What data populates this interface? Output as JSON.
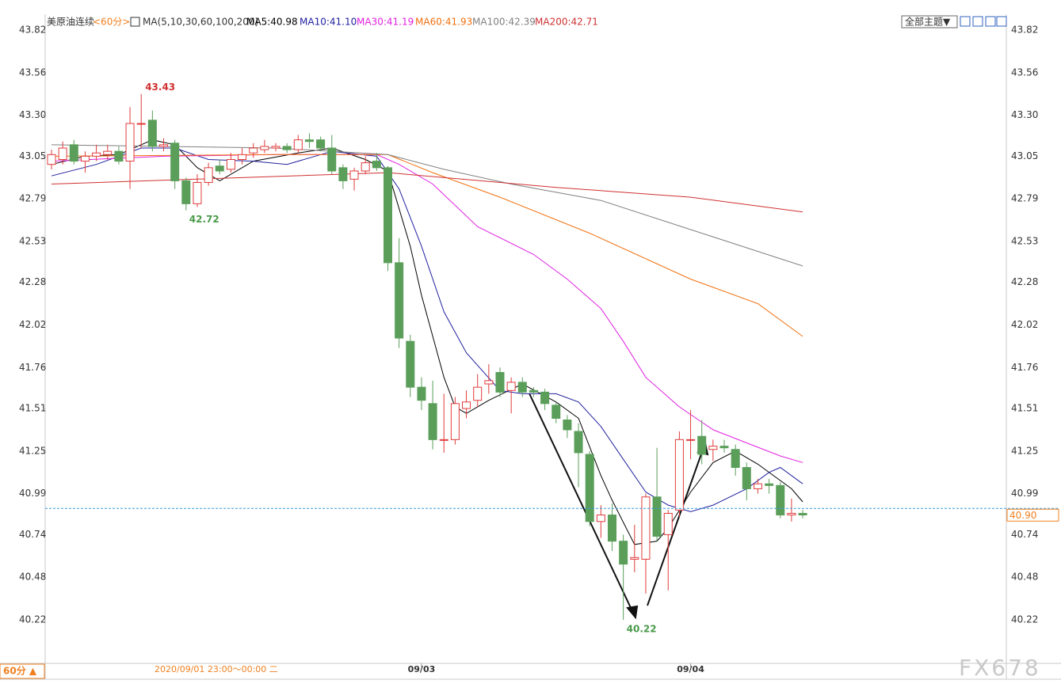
{
  "chart_data": {
    "type": "candlestick",
    "instrument": "美原油连续",
    "period": "<60分>",
    "indicator": "MA(5,10,30,60,100,200)",
    "toolbar": "全部主题▼",
    "cursor_label": "2020/09/01 23:00～00:00 二",
    "period_switch": "60分 ▲",
    "watermark": "FX678",
    "up_color": "#e03c3c",
    "down_color": "#5a9e5a",
    "ylim": [
      39.97,
      43.91
    ],
    "yticks": [
      43.82,
      43.56,
      {
        "value": 43.3,
        "label": "43.30"
      },
      43.05,
      42.79,
      42.53,
      42.28,
      42.02,
      41.76,
      41.51,
      41.25,
      40.99,
      40.74,
      40.48,
      40.22
    ],
    "x_labels": [
      {
        "value": 33,
        "label": "09/03"
      },
      {
        "value": 57,
        "label": "09/04"
      }
    ],
    "current_price": {
      "value": 40.9,
      "label": "40.90"
    },
    "ohlc": [
      [
        43.0,
        43.09,
        42.97,
        43.06
      ],
      [
        43.03,
        43.14,
        43.0,
        43.1
      ],
      [
        43.12,
        43.15,
        43.0,
        43.02
      ],
      [
        43.02,
        43.08,
        42.95,
        43.05
      ],
      [
        43.05,
        43.12,
        43.02,
        43.07
      ],
      [
        43.06,
        43.12,
        43.03,
        43.08
      ],
      [
        43.08,
        43.11,
        43.0,
        43.02
      ],
      [
        43.02,
        43.35,
        42.85,
        43.25
      ],
      [
        43.25,
        43.43,
        43.1,
        43.25
      ],
      [
        43.27,
        43.33,
        43.08,
        43.11
      ],
      [
        43.11,
        43.16,
        43.08,
        43.12
      ],
      [
        43.13,
        43.15,
        42.85,
        42.9
      ],
      [
        42.9,
        42.92,
        42.72,
        42.76
      ],
      [
        42.76,
        42.94,
        42.74,
        42.89
      ],
      [
        42.89,
        43.01,
        42.87,
        42.98
      ],
      [
        42.99,
        43.03,
        42.94,
        42.96
      ],
      [
        42.97,
        43.07,
        42.95,
        43.03
      ],
      [
        43.03,
        43.1,
        43.0,
        43.06
      ],
      [
        43.07,
        43.13,
        43.04,
        43.1
      ],
      [
        43.09,
        43.15,
        43.07,
        43.11
      ],
      [
        43.1,
        43.13,
        43.08,
        43.11
      ],
      [
        43.11,
        43.13,
        43.07,
        43.09
      ],
      [
        43.09,
        43.18,
        43.07,
        43.15
      ],
      [
        43.15,
        43.19,
        43.1,
        43.14
      ],
      [
        43.15,
        43.17,
        43.08,
        43.1
      ],
      [
        43.1,
        43.18,
        42.94,
        42.96
      ],
      [
        42.98,
        43.0,
        42.85,
        42.9
      ],
      [
        42.91,
        42.98,
        42.84,
        42.96
      ],
      [
        42.96,
        43.05,
        42.94,
        43.01
      ],
      [
        43.02,
        43.07,
        42.96,
        42.98
      ],
      [
        42.98,
        42.99,
        42.35,
        42.4
      ],
      [
        42.4,
        42.55,
        41.88,
        41.94
      ],
      [
        41.92,
        41.96,
        41.58,
        41.64
      ],
      [
        41.64,
        41.7,
        41.5,
        41.56
      ],
      [
        41.54,
        41.68,
        41.26,
        41.32
      ],
      [
        41.32,
        41.6,
        41.24,
        41.32
      ],
      [
        41.32,
        41.58,
        41.29,
        41.54
      ],
      [
        41.51,
        41.62,
        41.45,
        41.55
      ],
      [
        41.56,
        41.72,
        41.52,
        41.64
      ],
      [
        41.66,
        41.78,
        41.6,
        41.68
      ],
      [
        41.73,
        41.76,
        41.58,
        41.61
      ],
      [
        41.62,
        41.7,
        41.48,
        41.67
      ],
      [
        41.67,
        41.7,
        41.58,
        41.61
      ],
      [
        41.62,
        41.64,
        41.58,
        41.61
      ],
      [
        41.61,
        41.63,
        41.5,
        41.54
      ],
      [
        41.53,
        41.55,
        41.42,
        41.45
      ],
      [
        41.44,
        41.47,
        41.33,
        41.38
      ],
      [
        41.37,
        41.42,
        41.03,
        41.24
      ],
      [
        41.23,
        41.25,
        40.79,
        40.82
      ],
      [
        40.82,
        40.92,
        40.72,
        40.86
      ],
      [
        40.86,
        40.93,
        40.64,
        40.7
      ],
      [
        40.7,
        40.74,
        40.22,
        40.56
      ],
      [
        40.59,
        40.8,
        40.51,
        40.6
      ],
      [
        40.59,
        40.99,
        40.38,
        40.97
      ],
      [
        40.97,
        41.27,
        40.7,
        40.73
      ],
      [
        40.74,
        40.89,
        40.4,
        40.87
      ],
      [
        40.89,
        41.37,
        40.85,
        41.32
      ],
      [
        41.32,
        41.5,
        41.2,
        41.32
      ],
      [
        41.34,
        41.44,
        41.17,
        41.23
      ],
      [
        41.26,
        41.32,
        41.19,
        41.28
      ],
      [
        41.28,
        41.32,
        41.24,
        41.27
      ],
      [
        41.26,
        41.29,
        41.1,
        41.15
      ],
      [
        41.15,
        41.18,
        40.95,
        41.02
      ],
      [
        41.02,
        41.08,
        40.99,
        41.05
      ],
      [
        41.05,
        41.08,
        40.99,
        41.04
      ],
      [
        41.04,
        41.06,
        40.84,
        40.86
      ],
      [
        40.86,
        40.96,
        40.82,
        40.87
      ],
      [
        40.87,
        40.89,
        40.84,
        40.86
      ]
    ],
    "high_label_index": 8,
    "low_label_index": 12,
    "bottom_label_index": 51,
    "series": [
      {
        "name": "MA5:40.98",
        "color": "#000000",
        "x": [
          0,
          3,
          6,
          9,
          11,
          13,
          15,
          18,
          22,
          25,
          28,
          30,
          32,
          33,
          35,
          36,
          37,
          39,
          42,
          45,
          47,
          49,
          50,
          52,
          54,
          55,
          57,
          59,
          61,
          63,
          66,
          67
        ],
        "values": [
          43.0,
          43.05,
          43.06,
          43.15,
          43.12,
          42.98,
          42.9,
          43.02,
          43.07,
          43.1,
          43.03,
          42.96,
          42.5,
          42.2,
          41.7,
          41.52,
          41.48,
          41.56,
          41.66,
          41.55,
          41.45,
          41.1,
          40.95,
          40.68,
          40.7,
          40.78,
          41.0,
          41.18,
          41.25,
          41.17,
          41.02,
          40.94
        ]
      },
      {
        "name": "MA10:41.10",
        "color": "#2020a0",
        "x": [
          0,
          4,
          8,
          11,
          14,
          18,
          21,
          25,
          29,
          31,
          33,
          35,
          37,
          40,
          42,
          45,
          47,
          49,
          51,
          53,
          55,
          57,
          59,
          62,
          64,
          65,
          67
        ],
        "values": [
          42.93,
          43.0,
          43.1,
          43.1,
          43.03,
          43.02,
          43.0,
          43.08,
          43.05,
          42.85,
          42.5,
          42.1,
          41.85,
          41.62,
          41.6,
          41.6,
          41.55,
          41.4,
          41.2,
          41.0,
          40.92,
          40.88,
          40.92,
          41.02,
          41.12,
          41.15,
          41.05
        ]
      },
      {
        "name": "MA30:41.19",
        "color": "#e020e0",
        "x": [
          0,
          10,
          20,
          29,
          31,
          34,
          38,
          43,
          46,
          49,
          51,
          53,
          56,
          59,
          62,
          65,
          67
        ],
        "values": [
          43.02,
          43.05,
          43.06,
          43.06,
          43.0,
          42.88,
          42.62,
          42.45,
          42.3,
          42.12,
          41.92,
          41.7,
          41.52,
          41.38,
          41.3,
          41.22,
          41.18
        ]
      },
      {
        "name": "MA60:41.93",
        "color": "#f07010",
        "x": [
          0,
          20,
          30,
          34,
          40,
          48,
          57,
          63,
          67
        ],
        "values": [
          43.05,
          43.06,
          43.06,
          42.95,
          42.8,
          42.58,
          42.3,
          42.15,
          41.95
        ]
      },
      {
        "name": "MA100:42.39",
        "color": "#808080",
        "x": [
          0,
          20,
          30,
          35,
          41,
          49,
          58,
          67
        ],
        "values": [
          43.12,
          43.1,
          43.06,
          42.97,
          42.88,
          42.78,
          42.58,
          42.38
        ]
      },
      {
        "name": "MA200:42.71",
        "color": "#d03030",
        "x": [
          0,
          30,
          45,
          57,
          67
        ],
        "values": [
          42.88,
          42.95,
          42.86,
          42.8,
          42.71
        ]
      }
    ]
  }
}
